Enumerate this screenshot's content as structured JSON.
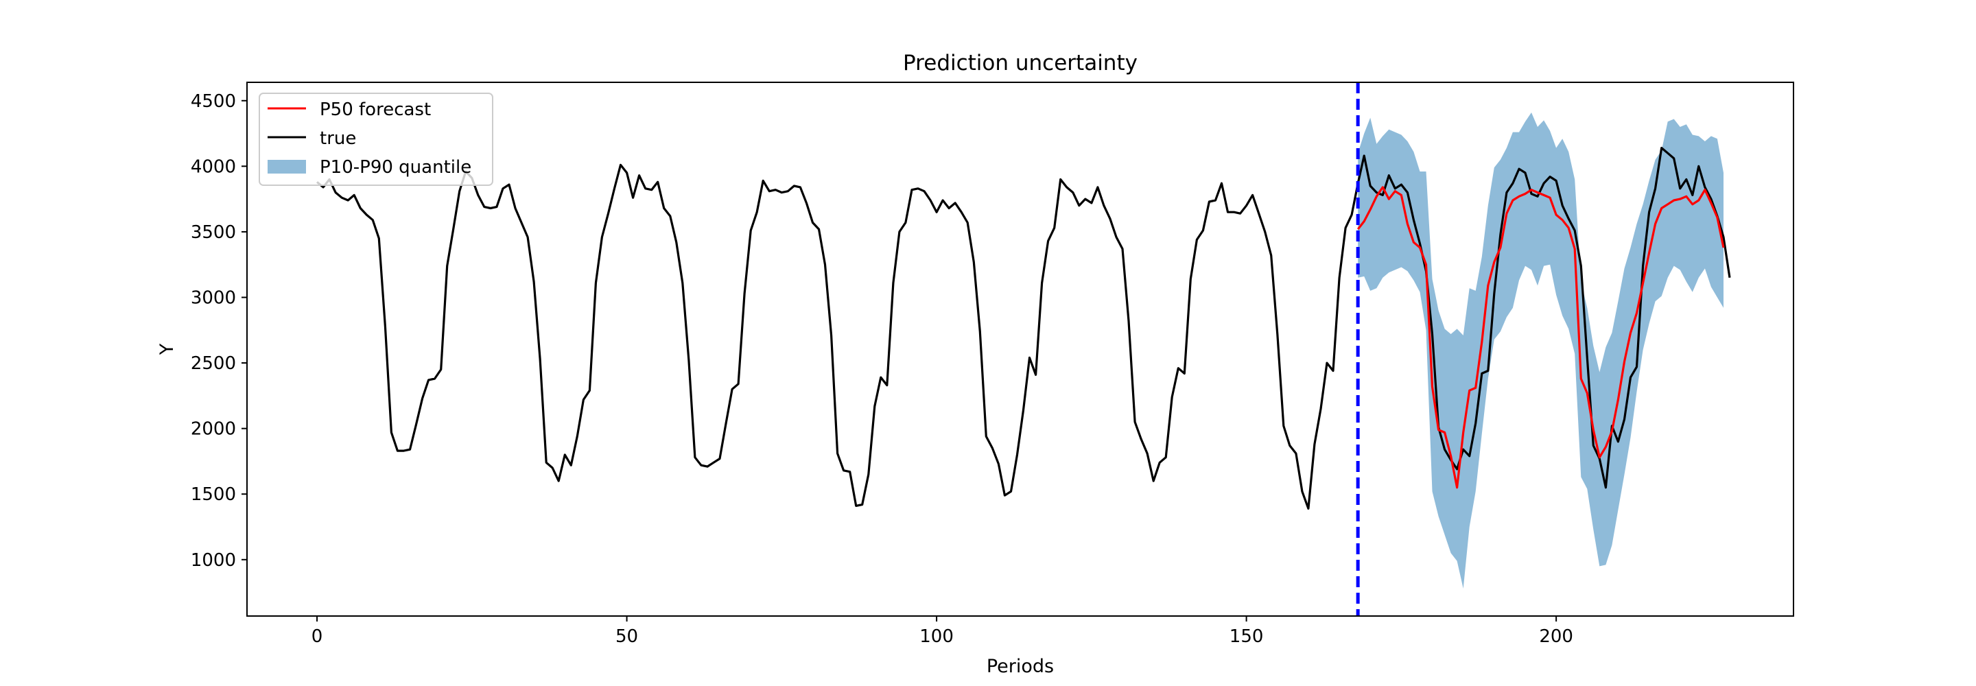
{
  "chart_data": {
    "type": "line",
    "title": "Prediction uncertainty",
    "xlabel": "Periods",
    "ylabel": "Y",
    "xlim": [
      -11.3,
      238.3
    ],
    "ylim": [
      570,
      4640
    ],
    "x_ticks": [
      0,
      50,
      100,
      150,
      200
    ],
    "y_ticks": [
      1000,
      1500,
      2000,
      2500,
      3000,
      3500,
      4000,
      4500
    ],
    "forecast_start": 168,
    "grid": false,
    "legend_position": "top-left",
    "legend": {
      "p50": "P50 forecast",
      "true": "true",
      "band": "P10-P90 quantile"
    },
    "colors": {
      "p50": "#ff0000",
      "true": "#000000",
      "band": "#1f77b4",
      "divider": "#0000ff"
    },
    "series": [
      {
        "name": "true",
        "x_start": 0,
        "values": [
          3880,
          3840,
          3900,
          3800,
          3760,
          3740,
          3780,
          3680,
          3630,
          3590,
          3450,
          2780,
          1970,
          1830,
          1830,
          1840,
          2030,
          2230,
          2370,
          2380,
          2450,
          3240,
          3520,
          3810,
          3960,
          3910,
          3780,
          3690,
          3680,
          3690,
          3830,
          3860,
          3680,
          3570,
          3460,
          3120,
          2530,
          1740,
          1700,
          1600,
          1800,
          1720,
          1940,
          2220,
          2290,
          3110,
          3460,
          3640,
          3830,
          4010,
          3950,
          3760,
          3930,
          3830,
          3820,
          3880,
          3680,
          3620,
          3420,
          3110,
          2520,
          1780,
          1720,
          1710,
          1740,
          1770,
          2040,
          2300,
          2340,
          3030,
          3510,
          3650,
          3890,
          3810,
          3820,
          3800,
          3810,
          3850,
          3840,
          3720,
          3570,
          3520,
          3250,
          2710,
          1810,
          1680,
          1670,
          1410,
          1420,
          1650,
          2170,
          2390,
          2330,
          3110,
          3500,
          3570,
          3820,
          3830,
          3810,
          3740,
          3650,
          3740,
          3680,
          3720,
          3650,
          3570,
          3270,
          2740,
          1940,
          1850,
          1730,
          1490,
          1520,
          1800,
          2140,
          2540,
          2410,
          3110,
          3430,
          3530,
          3900,
          3840,
          3800,
          3700,
          3750,
          3720,
          3840,
          3700,
          3600,
          3460,
          3370,
          2820,
          2050,
          1920,
          1810,
          1600,
          1740,
          1780,
          2240,
          2460,
          2420,
          3140,
          3440,
          3510,
          3730,
          3740,
          3870,
          3650,
          3650,
          3640,
          3700,
          3780,
          3640,
          3500,
          3320,
          2720,
          2020,
          1870,
          1810,
          1520,
          1390,
          1880,
          2150,
          2500,
          2440,
          3150,
          3530,
          3630,
          3870,
          4080,
          3850,
          3800,
          3780,
          3930,
          3830,
          3860,
          3800,
          3590,
          3410,
          3200,
          2720,
          2010,
          1840,
          1760,
          1690,
          1840,
          1790,
          2040,
          2420,
          2440,
          3030,
          3480,
          3800,
          3870,
          3980,
          3950,
          3790,
          3770,
          3870,
          3920,
          3890,
          3700,
          3600,
          3510,
          3240,
          2540,
          1870,
          1770,
          1550,
          2020,
          1900,
          2070,
          2390,
          2470,
          3240,
          3650,
          3830,
          4140,
          4100,
          4060,
          3830,
          3900,
          3780,
          4000,
          3840,
          3750,
          3620,
          3460,
          3150
        ]
      },
      {
        "name": "P50 forecast",
        "x_start": 168,
        "values": [
          3520,
          3580,
          3670,
          3770,
          3840,
          3750,
          3810,
          3780,
          3560,
          3420,
          3380,
          3250,
          2320,
          1990,
          1970,
          1790,
          1550,
          1970,
          2290,
          2310,
          2660,
          3090,
          3270,
          3380,
          3640,
          3740,
          3770,
          3790,
          3820,
          3800,
          3780,
          3760,
          3630,
          3590,
          3530,
          3370,
          2380,
          2270,
          1990,
          1780,
          1860,
          1980,
          2220,
          2510,
          2730,
          2880,
          3110,
          3340,
          3560,
          3680,
          3710,
          3740,
          3750,
          3770,
          3710,
          3740,
          3820,
          3720,
          3610,
          3380
        ]
      }
    ],
    "band": {
      "name": "P10-P90 quantile",
      "x_start": 168,
      "upper": [
        4100,
        4250,
        4370,
        4170,
        4230,
        4280,
        4260,
        4240,
        4190,
        4110,
        3960,
        3960,
        3140,
        2900,
        2760,
        2720,
        2760,
        2710,
        3070,
        3050,
        3310,
        3700,
        3990,
        4050,
        4140,
        4260,
        4260,
        4340,
        4410,
        4300,
        4350,
        4270,
        4140,
        4210,
        4110,
        3900,
        3120,
        2920,
        2630,
        2430,
        2620,
        2730,
        2970,
        3220,
        3380,
        3560,
        3710,
        3890,
        4050,
        4120,
        4340,
        4360,
        4300,
        4320,
        4240,
        4230,
        4190,
        4230,
        4210,
        3950
      ],
      "lower": [
        3150,
        3160,
        3050,
        3070,
        3150,
        3190,
        3210,
        3230,
        3200,
        3130,
        3040,
        2750,
        1520,
        1330,
        1190,
        1050,
        990,
        780,
        1250,
        1520,
        1960,
        2380,
        2680,
        2740,
        2850,
        2920,
        3130,
        3240,
        3210,
        3090,
        3240,
        3250,
        3020,
        2860,
        2760,
        2570,
        1630,
        1540,
        1230,
        950,
        960,
        1110,
        1380,
        1650,
        1930,
        2280,
        2600,
        2800,
        2970,
        3010,
        3150,
        3240,
        3210,
        3120,
        3040,
        3150,
        3220,
        3080,
        3000,
        2920
      ]
    }
  }
}
